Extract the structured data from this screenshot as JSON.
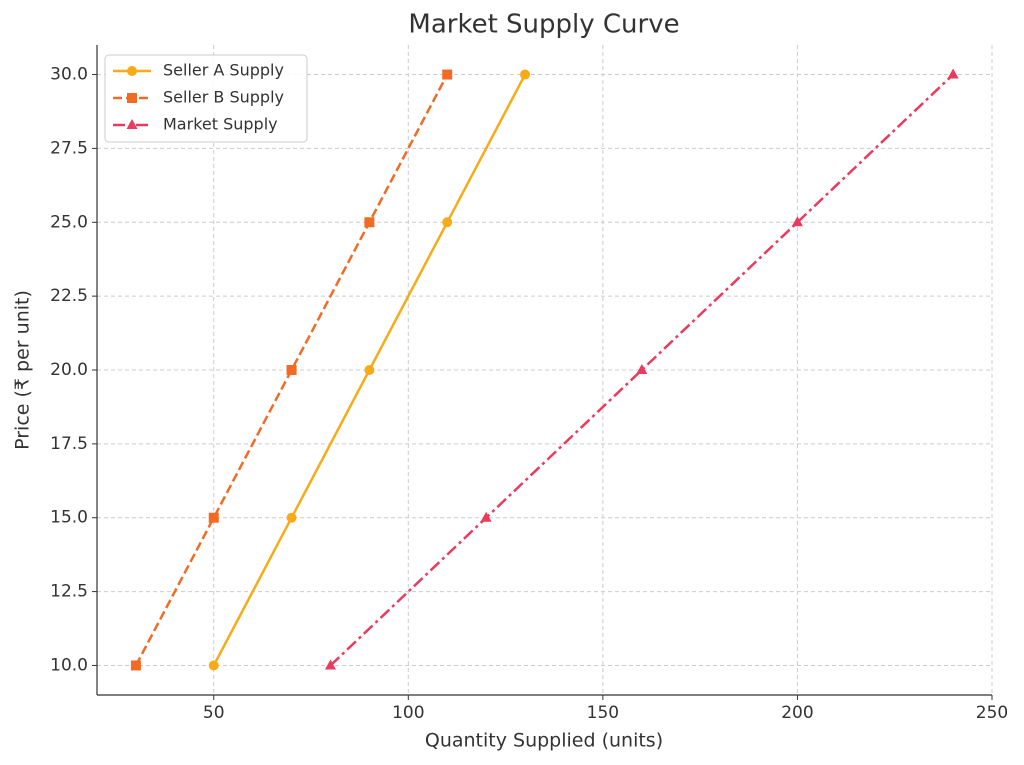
{
  "chart_data": {
    "type": "line",
    "title": "Market Supply Curve",
    "x_label": "Quantity Supplied (units)",
    "y_label": "Price (₹ per unit)",
    "series": [
      {
        "name": "Seller A Supply",
        "color": "#f8ab17",
        "linestyle": "solid",
        "marker": "circle",
        "x": [
          50,
          70,
          90,
          110,
          130
        ],
        "values": [
          10,
          15,
          20,
          25,
          30
        ]
      },
      {
        "name": "Seller B Supply",
        "color": "#f26b24",
        "linestyle": "dashed",
        "marker": "square",
        "x": [
          30,
          50,
          70,
          90,
          110
        ],
        "values": [
          10,
          15,
          20,
          25,
          30
        ]
      },
      {
        "name": "Market Supply",
        "color": "#ea3a5d",
        "linestyle": "dashdot",
        "marker": "triangle",
        "x": [
          80,
          120,
          160,
          200,
          240
        ],
        "values": [
          10,
          15,
          20,
          25,
          30
        ]
      }
    ],
    "xlim": [
      20,
      250
    ],
    "xticks": [
      50,
      100,
      150,
      200,
      250
    ],
    "ylim": [
      9,
      31
    ],
    "yticks": [
      {
        "value": 10,
        "label": "10.0"
      },
      {
        "value": 12.5,
        "label": "12.5"
      },
      {
        "value": 15,
        "label": "15.0"
      },
      {
        "value": 17.5,
        "label": "17.5"
      },
      {
        "value": 20,
        "label": "20.0"
      },
      {
        "value": 22.5,
        "label": "22.5"
      },
      {
        "value": 25,
        "label": "25.0"
      },
      {
        "value": 27.5,
        "label": "27.5"
      },
      {
        "value": 30,
        "label": "30.0"
      }
    ],
    "grid": true,
    "legend": "upper-left"
  }
}
